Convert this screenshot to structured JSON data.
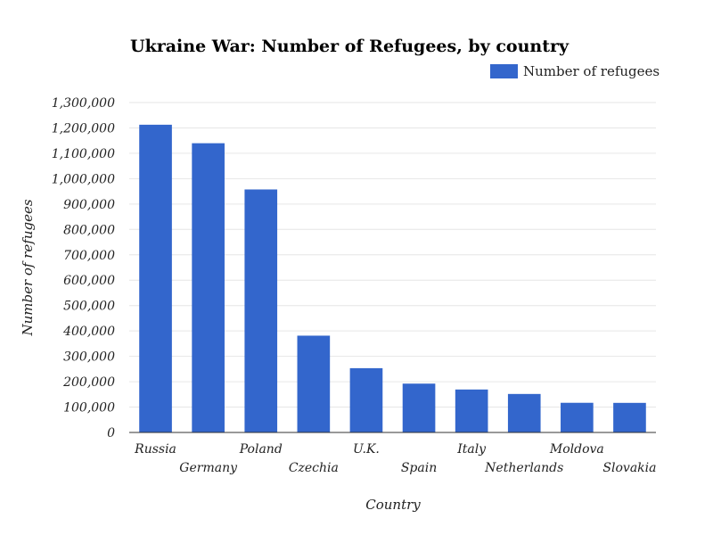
{
  "chart_data": {
    "type": "bar",
    "title": "Ukraine War: Number of Refugees, by country",
    "xlabel": "Country",
    "ylabel": "Number of refugees",
    "categories": [
      "Russia",
      "Germany",
      "Poland",
      "Czechia",
      "U.K.",
      "Spain",
      "Italy",
      "Netherlands",
      "Moldova",
      "Slovakia"
    ],
    "series": [
      {
        "name": "Number of refugees",
        "values": [
          1212585,
          1139690,
          957505,
          381400,
          253300,
          192390,
          169270,
          151680,
          116905,
          116600
        ]
      }
    ],
    "ylim": [
      0,
      1300000
    ],
    "yticks": [
      0,
      100000,
      200000,
      300000,
      400000,
      500000,
      600000,
      700000,
      800000,
      900000,
      1000000,
      1100000,
      1200000,
      1300000
    ],
    "ytick_labels": [
      "0",
      "100,000",
      "200,000",
      "300,000",
      "400,000",
      "500,000",
      "600,000",
      "700,000",
      "800,000",
      "900,000",
      "1,000,000",
      "1,100,000",
      "1,200,000",
      "1,300,000"
    ],
    "grid": true,
    "legend_position": "top-right",
    "colors": {
      "bar": "#3366cc"
    }
  }
}
